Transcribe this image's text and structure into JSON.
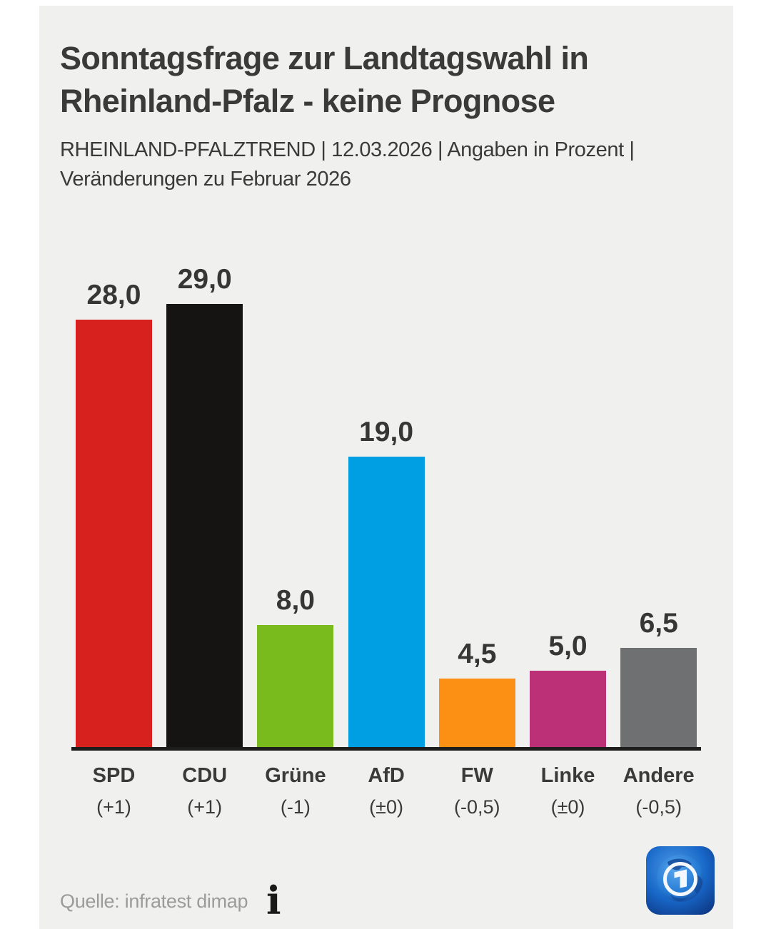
{
  "header": {
    "title_lines": [
      "Sonntagsfrage zur Landtagswahl in",
      "Rheinland-Pfalz - keine Prognose"
    ],
    "subtitle_lines": [
      "RHEINLAND-PFALZTREND | 12.03.2026 | Angaben in Prozent |",
      "Veränderungen zu Februar 2026"
    ]
  },
  "chart_data": {
    "type": "bar",
    "title": "Sonntagsfrage zur Landtagswahl in Rheinland-Pfalz - keine Prognose",
    "subtitle": "RHEINLAND-PFALZTREND | 12.03.2026 | Angaben in Prozent | Veränderungen zu Februar 2026",
    "unit": "Prozent",
    "categories": [
      "SPD",
      "CDU",
      "Grüne",
      "AfD",
      "FW",
      "Linke",
      "Andere"
    ],
    "values": [
      28.0,
      29.0,
      8.0,
      19.0,
      4.5,
      5.0,
      6.5
    ],
    "value_labels": [
      "28,0",
      "29,0",
      "8,0",
      "19,0",
      "4,5",
      "5,0",
      "6,5"
    ],
    "changes": [
      "(+1)",
      "(+1)",
      "(-1)",
      "(±0)",
      "(-0,5)",
      "(±0)",
      "(-0,5)"
    ],
    "bar_colors": [
      "#d7211e",
      "#161412",
      "#79ba1d",
      "#009fe3",
      "#fb9015",
      "#bb3076",
      "#6f7072"
    ],
    "ylim": [
      0,
      30
    ],
    "grid": false,
    "legend": false
  },
  "footer": {
    "source": "Quelle: infratest dimap",
    "info_icon": "i"
  },
  "colors": {
    "background": "#f0f0ee",
    "text": "#3a3a38",
    "muted": "#9b9b9a",
    "axis": "#1d1d1b",
    "logo_blue": "#1868c9"
  }
}
